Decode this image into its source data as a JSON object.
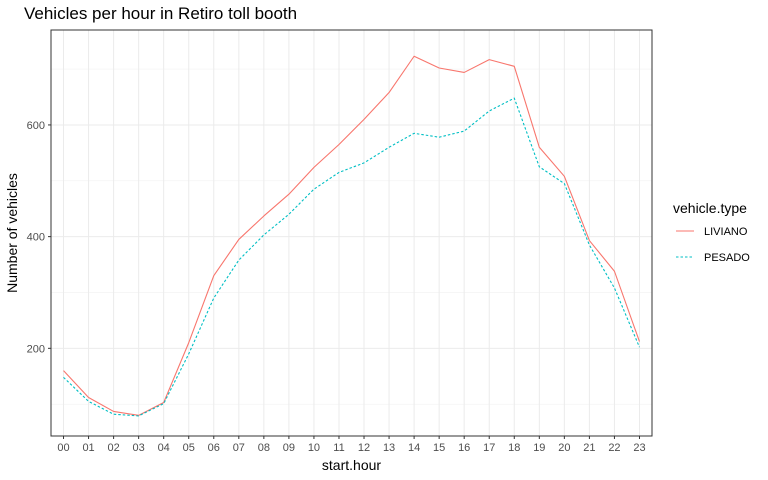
{
  "chart_data": {
    "type": "line",
    "title": "Vehicles per hour in Retiro toll booth",
    "xlabel": "start.hour",
    "ylabel": "Number of vehicles",
    "categories": [
      "00",
      "01",
      "02",
      "03",
      "04",
      "05",
      "06",
      "07",
      "08",
      "09",
      "10",
      "11",
      "12",
      "13",
      "14",
      "15",
      "16",
      "17",
      "18",
      "19",
      "20",
      "21",
      "22",
      "23"
    ],
    "yticks": [
      200,
      400,
      600
    ],
    "ylim": [
      43,
      770
    ],
    "grid": true,
    "legend": {
      "title": "vehicle.type",
      "placement": "right"
    },
    "series": [
      {
        "name": "LIVIANO",
        "color": "#F8766D",
        "linetype": "solid",
        "values": [
          160,
          112,
          87,
          80,
          103,
          210,
          330,
          395,
          437,
          476,
          524,
          565,
          610,
          658,
          723,
          702,
          694,
          717,
          705,
          560,
          508,
          393,
          338,
          212
        ]
      },
      {
        "name": "PESADO",
        "color": "#00BFC4",
        "linetype": "dashed",
        "values": [
          148,
          105,
          82,
          79,
          101,
          190,
          290,
          358,
          403,
          440,
          485,
          515,
          532,
          560,
          585,
          578,
          589,
          625,
          648,
          525,
          495,
          385,
          308,
          202
        ]
      }
    ]
  }
}
